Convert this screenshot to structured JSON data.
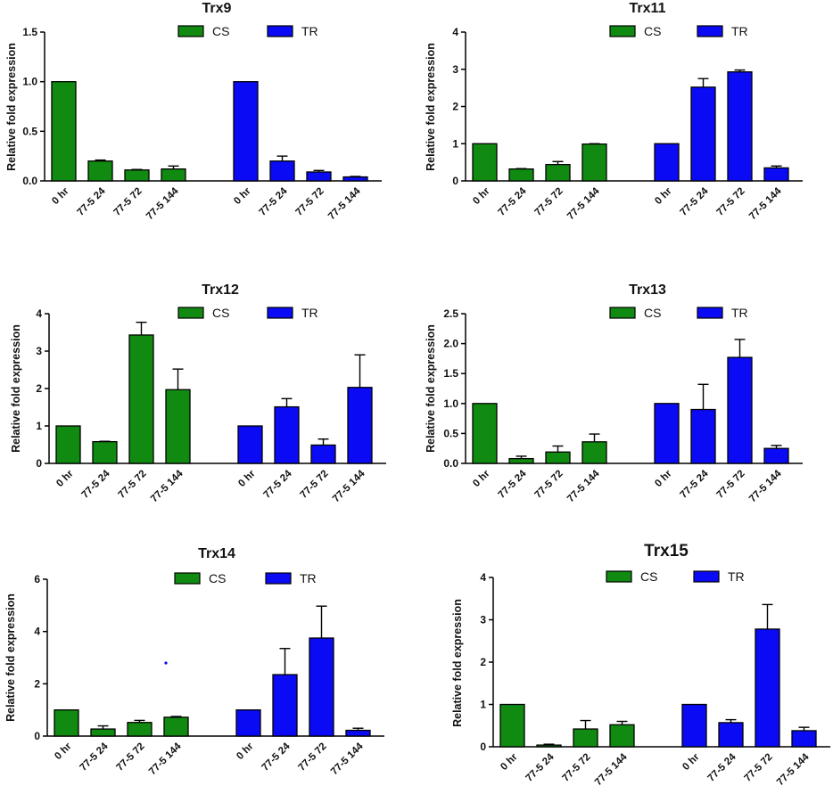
{
  "colors": {
    "cs": "#118a11",
    "tr": "#0a0af5",
    "axis": "#000000"
  },
  "chart_data": [
    {
      "type": "bar",
      "title": "Trx9",
      "ylabel": "Relative fold expression",
      "ylim": [
        0,
        1.5
      ],
      "yticks": [
        "0.0",
        "0.5",
        "1.0",
        "1.5"
      ],
      "ytick_values": [
        0,
        0.5,
        1.0,
        1.5
      ],
      "categories": [
        "0 hr",
        "77-5 24",
        "77-5 72",
        "77-5 144"
      ],
      "legend": [
        "CS",
        "TR"
      ],
      "series": [
        {
          "name": "CS",
          "values": [
            1.0,
            0.2,
            0.11,
            0.12
          ],
          "errors": [
            0,
            0.01,
            0.005,
            0.03
          ]
        },
        {
          "name": "TR",
          "values": [
            1.0,
            0.2,
            0.09,
            0.04
          ],
          "errors": [
            0,
            0.05,
            0.015,
            0.005
          ]
        }
      ]
    },
    {
      "type": "bar",
      "title": "Trx11",
      "ylabel": "Relative fold expression",
      "ylim": [
        0,
        4
      ],
      "yticks": [
        "0",
        "1",
        "2",
        "3",
        "4"
      ],
      "ytick_values": [
        0,
        1,
        2,
        3,
        4
      ],
      "categories": [
        "0 hr",
        "77-5 24",
        "77-5 72",
        "77-5 144"
      ],
      "legend": [
        "CS",
        "TR"
      ],
      "series": [
        {
          "name": "CS",
          "values": [
            1.0,
            0.32,
            0.44,
            0.99
          ],
          "errors": [
            0,
            0.01,
            0.08,
            0.01
          ]
        },
        {
          "name": "TR",
          "values": [
            1.0,
            2.52,
            2.93,
            0.35
          ],
          "errors": [
            0,
            0.23,
            0.05,
            0.05
          ]
        }
      ]
    },
    {
      "type": "bar",
      "title": "Trx12",
      "ylabel": "Relative fold expression",
      "ylim": [
        0,
        4
      ],
      "yticks": [
        "0",
        "1",
        "2",
        "3",
        "4"
      ],
      "ytick_values": [
        0,
        1,
        2,
        3,
        4
      ],
      "categories": [
        "0 hr",
        "77-5 24",
        "77-5 72",
        "77-5 144"
      ],
      "legend": [
        "CS",
        "TR"
      ],
      "series": [
        {
          "name": "CS",
          "values": [
            1.0,
            0.58,
            3.43,
            1.97
          ],
          "errors": [
            0,
            0.01,
            0.34,
            0.55
          ]
        },
        {
          "name": "TR",
          "values": [
            1.0,
            1.51,
            0.49,
            2.03
          ],
          "errors": [
            0,
            0.22,
            0.16,
            0.87
          ]
        }
      ]
    },
    {
      "type": "bar",
      "title": "Trx13",
      "ylabel": "Relative fold expression",
      "ylim": [
        0,
        2.5
      ],
      "yticks": [
        "0.0",
        "0.5",
        "1.0",
        "1.5",
        "2.0",
        "2.5"
      ],
      "ytick_values": [
        0,
        0.5,
        1.0,
        1.5,
        2.0,
        2.5
      ],
      "categories": [
        "0 hr",
        "77-5 24",
        "77-5 72",
        "77-5 144"
      ],
      "legend": [
        "CS",
        "TR"
      ],
      "series": [
        {
          "name": "CS",
          "values": [
            1.0,
            0.08,
            0.19,
            0.36
          ],
          "errors": [
            0,
            0.04,
            0.1,
            0.13
          ]
        },
        {
          "name": "TR",
          "values": [
            1.0,
            0.9,
            1.77,
            0.25
          ],
          "errors": [
            0,
            0.42,
            0.3,
            0.05
          ]
        }
      ]
    },
    {
      "type": "bar",
      "title": "Trx14",
      "ylabel": "Relative fold expression",
      "ylim": [
        0,
        6
      ],
      "yticks": [
        "0",
        "2",
        "4",
        "6"
      ],
      "ytick_values": [
        0,
        2,
        4,
        6
      ],
      "categories": [
        "0 hr",
        "77-5 24",
        "77-5 72",
        "77-5 144"
      ],
      "legend": [
        "CS",
        "TR"
      ],
      "series": [
        {
          "name": "CS",
          "values": [
            1.0,
            0.27,
            0.52,
            0.72
          ],
          "errors": [
            0,
            0.12,
            0.08,
            0.03
          ]
        },
        {
          "name": "TR",
          "values": [
            1.0,
            2.35,
            3.75,
            0.22
          ],
          "errors": [
            0,
            1.0,
            1.22,
            0.08
          ]
        }
      ]
    },
    {
      "type": "bar",
      "title": "Trx15",
      "ylabel": "Relative fold expression",
      "ylim": [
        0,
        4
      ],
      "yticks": [
        "0",
        "1",
        "2",
        "3",
        "4"
      ],
      "ytick_values": [
        0,
        1,
        2,
        3,
        4
      ],
      "categories": [
        "0 hr",
        "77-5 24",
        "77-5 72",
        "77-5 144"
      ],
      "legend": [
        "CS",
        "TR"
      ],
      "series": [
        {
          "name": "CS",
          "values": [
            1.0,
            0.04,
            0.42,
            0.52
          ],
          "errors": [
            0,
            0.02,
            0.2,
            0.08
          ]
        },
        {
          "name": "TR",
          "values": [
            1.0,
            0.57,
            2.78,
            0.38
          ],
          "errors": [
            0,
            0.07,
            0.58,
            0.08
          ]
        }
      ]
    }
  ]
}
